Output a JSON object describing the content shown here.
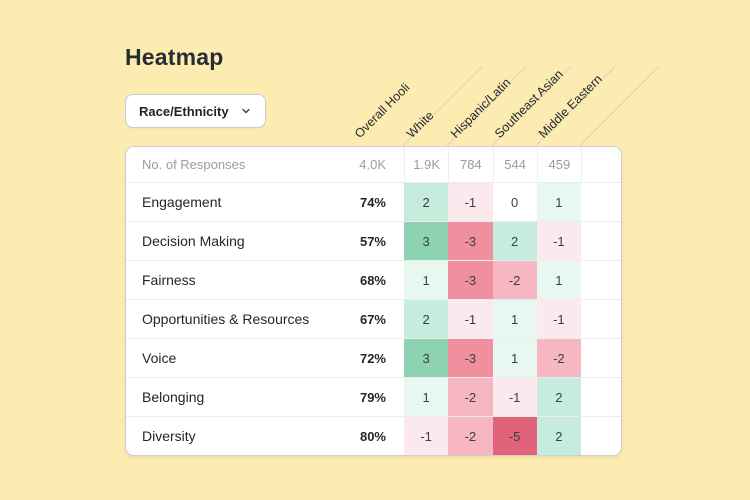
{
  "page": {
    "background_color": "#FDECB2"
  },
  "title": "Heatmap",
  "filter_dropdown": {
    "label": "Race/Ethnicity",
    "icon": "chevron-down-icon"
  },
  "table": {
    "columns": [
      "Overall Hooli",
      "White",
      "Hispanic/Latin",
      "Southeast Asian",
      "Middle Eastern"
    ],
    "responses_row": {
      "label": "No. of Responses",
      "overall": "4.0K",
      "values": [
        "1.9K",
        "784",
        "544",
        "459"
      ]
    },
    "rows": [
      {
        "label": "Engagement",
        "overall": "74%",
        "deltas": [
          2,
          -1,
          0,
          1
        ]
      },
      {
        "label": "Decision Making",
        "overall": "57%",
        "deltas": [
          3,
          -3,
          2,
          -1
        ]
      },
      {
        "label": "Fairness",
        "overall": "68%",
        "deltas": [
          1,
          -3,
          -2,
          1
        ]
      },
      {
        "label": "Opportunities & Resources",
        "overall": "67%",
        "deltas": [
          2,
          -1,
          1,
          -1
        ]
      },
      {
        "label": "Voice",
        "overall": "72%",
        "deltas": [
          3,
          -3,
          1,
          -2
        ]
      },
      {
        "label": "Belonging",
        "overall": "79%",
        "deltas": [
          1,
          -2,
          -1,
          2
        ]
      },
      {
        "label": "Diversity",
        "overall": "80%",
        "deltas": [
          -1,
          -2,
          -5,
          2
        ]
      }
    ],
    "cell_colors": {
      "3": "#8DD3B2",
      "2": "#C5ECDC",
      "1": "#E9F7F1",
      "0": "#FFFFFF",
      "-1": "#FCE9ED",
      "-2": "#F7B7C2",
      "-3": "#F0909F",
      "-5": "#E16379"
    },
    "cell_text_color": "#3A4046"
  },
  "chart_data": {
    "type": "heatmap",
    "title": "Heatmap",
    "columns": [
      "Overall Hooli",
      "White",
      "Hispanic/Latin",
      "Southeast Asian",
      "Middle Eastern"
    ],
    "rows": [
      "No. of Responses",
      "Engagement",
      "Decision Making",
      "Fairness",
      "Opportunities & Resources",
      "Voice",
      "Belonging",
      "Diversity"
    ],
    "responses": [
      "4.0K",
      "1.9K",
      "784",
      "544",
      "459"
    ],
    "overall_scores": {
      "Engagement": "74%",
      "Decision Making": "57%",
      "Fairness": "68%",
      "Opportunities & Resources": "67%",
      "Voice": "72%",
      "Belonging": "79%",
      "Diversity": "80%"
    },
    "delta_matrix_columns": [
      "White",
      "Hispanic/Latin",
      "Southeast Asian",
      "Middle Eastern"
    ],
    "delta_matrix": [
      [
        2,
        -1,
        0,
        1
      ],
      [
        3,
        -3,
        2,
        -1
      ],
      [
        1,
        -3,
        -2,
        1
      ],
      [
        2,
        -1,
        1,
        -1
      ],
      [
        3,
        -3,
        1,
        -2
      ],
      [
        1,
        -2,
        -1,
        2
      ],
      [
        -1,
        -2,
        -5,
        2
      ]
    ],
    "color_scale": {
      "positive": "#8DD3B2",
      "negative": "#E16379",
      "zero": "#FFFFFF"
    },
    "legend_position": "none"
  }
}
